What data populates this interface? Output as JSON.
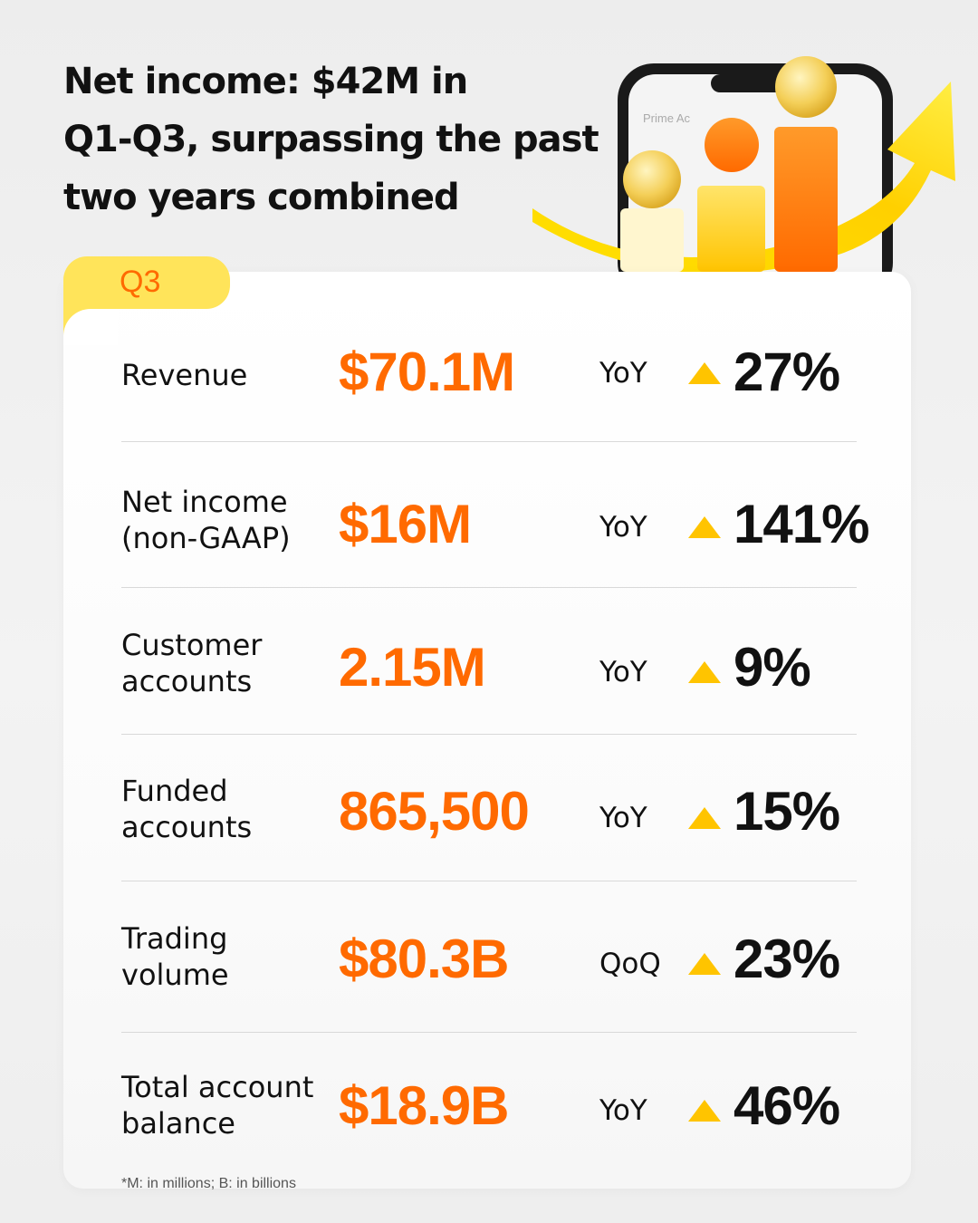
{
  "headline": "Net income: $42M in\nQ1-Q3, surpassing the past\ntwo years combined",
  "tab_label": "Q3",
  "rows": [
    {
      "label": "Revenue",
      "value": "$70.1M",
      "comparison": "YoY",
      "change": "27%"
    },
    {
      "label": "Net income\n(non-GAAP)",
      "value": "$16M",
      "comparison": "YoY",
      "change": "141%"
    },
    {
      "label": "Customer\naccounts",
      "value": "2.15M",
      "comparison": "YoY",
      "change": "9%"
    },
    {
      "label": "Funded\naccounts",
      "value": "865,500",
      "comparison": "YoY",
      "change": "15%"
    },
    {
      "label": "Trading\nvolume",
      "value": "$80.3B",
      "comparison": "QoQ",
      "change": "23%"
    },
    {
      "label": "Total account\nbalance",
      "value": "$18.9B",
      "comparison": "YoY",
      "change": "46%"
    }
  ],
  "footnote": "*M: in millions; B: in billions",
  "colors": {
    "accent": "#ff6a00",
    "tab": "#ffe45a",
    "triangle": "#ffc400",
    "text": "#111111"
  },
  "illustration": {
    "phone_text": "Prime Ac"
  }
}
